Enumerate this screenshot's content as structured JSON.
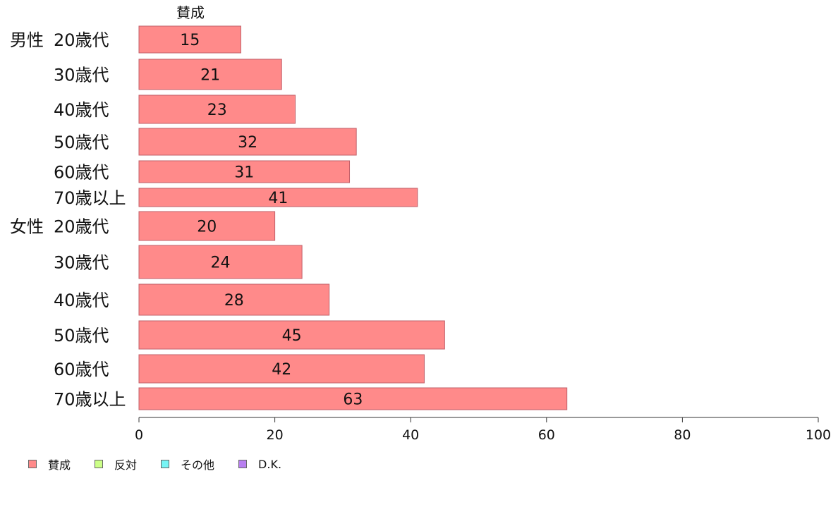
{
  "chart_data": {
    "type": "bar",
    "orientation": "horizontal",
    "top_label": "賛成",
    "groups": [
      {
        "name": "男性",
        "categories": [
          "20歳代",
          "30歳代",
          "40歳代",
          "50歳代",
          "60歳代",
          "70歳以上"
        ],
        "values": [
          15,
          21,
          23,
          32,
          31,
          41
        ]
      },
      {
        "name": "女性",
        "categories": [
          "20歳代",
          "30歳代",
          "40歳代",
          "50歳代",
          "60歳代",
          "70歳以上"
        ],
        "values": [
          20,
          24,
          28,
          45,
          42,
          63
        ]
      }
    ],
    "xlim": [
      0,
      100
    ],
    "xticks": [
      0,
      20,
      40,
      60,
      80,
      100
    ],
    "grid": false,
    "legend_placement": "bottom-left",
    "legend": [
      {
        "label": "賛成",
        "color": "#ff8a8a"
      },
      {
        "label": "反対",
        "color": "#ccff88"
      },
      {
        "label": "その他",
        "color": "#77f5f5"
      },
      {
        "label": "D.K.",
        "color": "#b87ff0"
      }
    ]
  }
}
